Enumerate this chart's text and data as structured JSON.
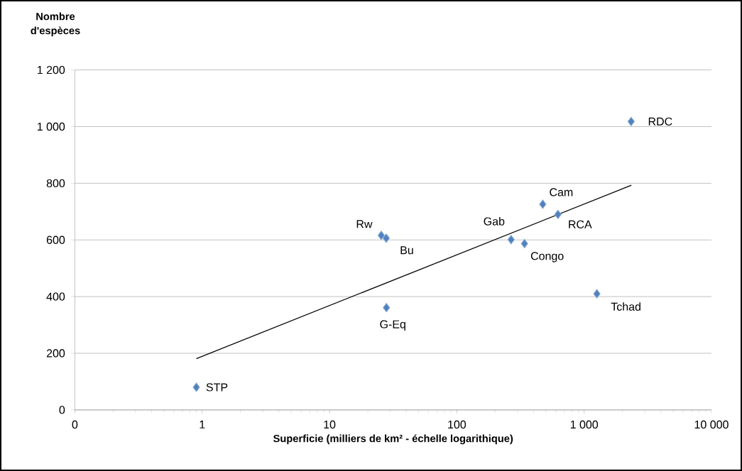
{
  "chart_data": {
    "type": "scatter",
    "xlabel": "Superficie  (milliers de km² - échelle logarithique)",
    "ylabel": "Nombre d'espèces",
    "log": "x",
    "grid": "y",
    "marker": "diamond",
    "xlim": [
      0.1,
      10000
    ],
    "xticks": [
      {
        "value": 0.1,
        "label": "0"
      },
      1,
      10,
      100,
      {
        "value": 1000,
        "label": "1 000"
      },
      {
        "value": 10000,
        "label": "10 000"
      }
    ],
    "ylim": [
      0,
      1200
    ],
    "yticks": [
      0,
      200,
      400,
      600,
      800,
      {
        "value": 1000,
        "label": "1 000"
      },
      {
        "value": 1200,
        "label": "1 200"
      }
    ],
    "series": [
      {
        "color": "#4f81bd",
        "x": [
          0.9,
          25.5,
          27.9,
          28,
          267,
          340,
          473,
          623,
          1259,
          2339
        ],
        "values": [
          80,
          616,
          606,
          361,
          601,
          587,
          726,
          690,
          410,
          1018
        ]
      },
      {
        "type": "line",
        "color": "#000000",
        "marker": "none",
        "x": [
          0.9,
          2350
        ],
        "values": [
          181,
          793
        ]
      }
    ],
    "annotations": [
      {
        "text": "STP",
        "x": 0.9,
        "y": 80
      },
      {
        "text": "Rw",
        "x": 25.5,
        "y": 616
      },
      {
        "text": "Bu",
        "x": 27.9,
        "y": 606
      },
      {
        "text": "G-Eq",
        "x": 28,
        "y": 361
      },
      {
        "text": "Gab",
        "x": 267,
        "y": 601
      },
      {
        "text": "Congo",
        "x": 340,
        "y": 587
      },
      {
        "text": "Cam",
        "x": 473,
        "y": 726
      },
      {
        "text": "RCA",
        "x": 623,
        "y": 690
      },
      {
        "text": "Tchad",
        "x": 1259,
        "y": 410
      },
      {
        "text": "RDC",
        "x": 2339,
        "y": 1018
      }
    ]
  }
}
